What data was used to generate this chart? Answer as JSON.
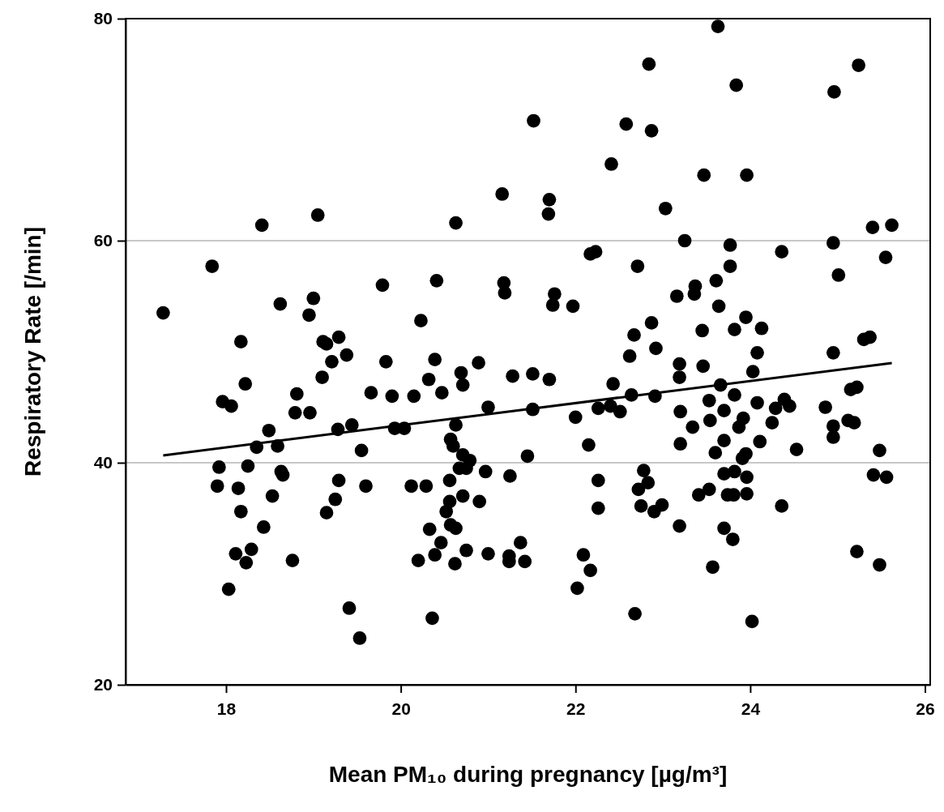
{
  "chart_data": {
    "type": "scatter",
    "xlabel": "Mean PM₁₀ during pregnancy [µg/m³]",
    "ylabel": "Respiratory Rate [/min]",
    "xlim": [
      16.85,
      26.06
    ],
    "xticks": [
      18,
      20,
      22,
      24,
      26
    ],
    "ylim": [
      20,
      80
    ],
    "yticks": [
      20,
      40,
      60,
      80
    ],
    "grid": "y",
    "series": [
      {
        "color": "#000000",
        "marker": "circle",
        "x": [
          17.84,
          17.28,
          18.62,
          19.0,
          18.95,
          19.79,
          18.17,
          19.11,
          19.15,
          19.29,
          19.38,
          19.21,
          19.83,
          18.22,
          19.1,
          17.96,
          18.06,
          18.81,
          18.79,
          18.96,
          19.66,
          19.9,
          18.49,
          19.28,
          19.44,
          19.93,
          20.04,
          18.35,
          18.59,
          19.55,
          18.41,
          19.05,
          17.92,
          18.25,
          18.63,
          18.65,
          17.9,
          18.14,
          19.29,
          19.6,
          18.53,
          19.25,
          18.17,
          19.15,
          18.43,
          18.11,
          18.29,
          18.23,
          18.76,
          18.03,
          19.41,
          19.53,
          22.84,
          21.52,
          22.58,
          22.87,
          22.41,
          21.16,
          21.7,
          21.69,
          20.63,
          22.17,
          22.23,
          22.71,
          20.41,
          21.18,
          21.19,
          21.76,
          21.74,
          21.97,
          20.23,
          22.87,
          22.67,
          22.92,
          22.62,
          20.39,
          20.89,
          20.32,
          20.69,
          20.71,
          20.47,
          21.28,
          21.51,
          21.7,
          22.43,
          22.64,
          22.91,
          20.15,
          21.0,
          21.51,
          22.26,
          22.4,
          22.51,
          22.0,
          20.63,
          20.57,
          20.6,
          22.15,
          20.71,
          20.79,
          21.45,
          20.67,
          20.75,
          20.97,
          21.25,
          20.56,
          20.12,
          20.29,
          20.71,
          20.56,
          20.9,
          20.52,
          20.57,
          20.63,
          20.33,
          20.46,
          20.75,
          21.37,
          20.39,
          20.2,
          20.62,
          21.0,
          21.24,
          21.24,
          21.42,
          20.36,
          22.26,
          22.26,
          22.09,
          22.17,
          22.02,
          22.68,
          22.78,
          22.83,
          22.72,
          22.75,
          23.2,
          23.7,
          24.11,
          23.6,
          23.91,
          23.95,
          24.53,
          25.48,
          22.9,
          22.99,
          23.7,
          23.82,
          23.96,
          23.41,
          23.53,
          23.74,
          23.81,
          23.96,
          24.36,
          23.19,
          23.7,
          23.8,
          23.57,
          24.02,
          25.41,
          25.56,
          25.22,
          25.48,
          23.63,
          25.24,
          23.84,
          24.96,
          23.47,
          23.96,
          23.03,
          25.4,
          25.62,
          23.25,
          23.77,
          24.95,
          24.36,
          25.55,
          23.77,
          25.01,
          23.61,
          23.37,
          23.36,
          23.16,
          23.64,
          23.95,
          23.45,
          23.82,
          24.13,
          25.3,
          25.37,
          24.08,
          24.95,
          23.19,
          23.19,
          23.46,
          24.03,
          23.66,
          23.82,
          25.15,
          25.22,
          23.53,
          24.08,
          24.39,
          24.45,
          24.29,
          24.86,
          23.2,
          23.7,
          23.54,
          23.92,
          23.87,
          23.34,
          24.25,
          24.95,
          25.12,
          25.19,
          24.95
        ],
        "values": [
          57.7,
          53.5,
          54.3,
          54.8,
          53.3,
          56.0,
          50.9,
          50.9,
          50.7,
          51.3,
          49.7,
          49.1,
          49.1,
          47.1,
          47.7,
          45.5,
          45.1,
          46.2,
          44.5,
          44.5,
          46.3,
          46.0,
          42.9,
          43.0,
          43.4,
          43.1,
          43.1,
          41.4,
          41.5,
          41.1,
          61.4,
          62.3,
          39.6,
          39.7,
          39.2,
          38.9,
          37.9,
          37.7,
          38.4,
          37.9,
          37.0,
          36.7,
          35.6,
          35.5,
          34.2,
          31.8,
          32.2,
          31.0,
          31.2,
          28.6,
          26.9,
          24.2,
          75.9,
          70.8,
          70.5,
          69.9,
          66.9,
          64.2,
          63.7,
          62.4,
          61.6,
          58.8,
          59.0,
          57.7,
          56.4,
          56.2,
          55.3,
          55.2,
          54.2,
          54.1,
          52.8,
          52.6,
          51.5,
          50.3,
          49.6,
          49.3,
          49.0,
          47.5,
          48.1,
          47.0,
          46.3,
          47.8,
          48.0,
          47.5,
          47.1,
          46.1,
          46.0,
          46.0,
          45.0,
          44.8,
          44.9,
          45.1,
          44.6,
          44.1,
          43.4,
          42.1,
          41.5,
          41.6,
          40.7,
          40.2,
          40.6,
          39.5,
          39.5,
          39.2,
          38.8,
          38.4,
          37.9,
          37.9,
          37.0,
          36.5,
          36.5,
          35.6,
          34.4,
          34.1,
          34.0,
          32.8,
          32.1,
          32.8,
          31.7,
          31.2,
          30.9,
          31.8,
          31.6,
          31.1,
          31.1,
          26.0,
          38.4,
          35.9,
          31.7,
          30.3,
          28.7,
          26.4,
          39.3,
          38.2,
          37.6,
          36.1,
          41.7,
          42.0,
          41.9,
          40.9,
          40.4,
          40.8,
          41.2,
          41.1,
          35.6,
          36.2,
          39.0,
          39.2,
          38.7,
          37.1,
          37.6,
          37.1,
          37.1,
          37.2,
          36.1,
          34.3,
          34.1,
          33.1,
          30.6,
          25.7,
          38.9,
          38.7,
          32.0,
          30.8,
          79.3,
          75.8,
          74.0,
          73.4,
          65.9,
          65.9,
          62.9,
          61.2,
          61.4,
          60.0,
          59.6,
          59.8,
          59.0,
          58.5,
          57.7,
          56.9,
          56.4,
          55.9,
          55.2,
          55.0,
          54.1,
          53.1,
          51.9,
          52.0,
          52.1,
          51.1,
          51.3,
          49.9,
          49.9,
          48.9,
          47.7,
          48.7,
          48.2,
          47.0,
          46.1,
          46.6,
          46.8,
          45.6,
          45.4,
          45.7,
          45.1,
          44.9,
          45.0,
          44.6,
          44.7,
          43.8,
          44.0,
          43.2,
          43.2,
          43.6,
          43.3,
          43.8,
          43.6,
          42.3
        ]
      },
      {
        "type": "line",
        "color": "#000000",
        "x": [
          17.28,
          25.62
        ],
        "values": [
          40.66,
          48.98
        ]
      }
    ]
  }
}
